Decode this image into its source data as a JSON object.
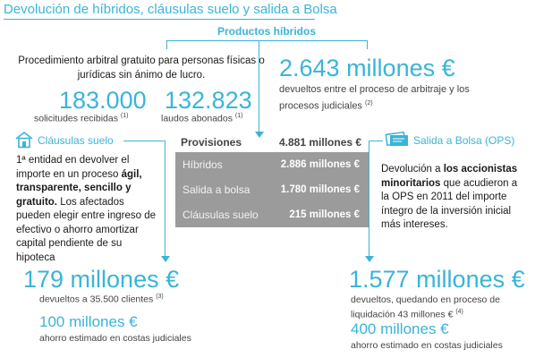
{
  "title": "Devolución de híbridos, cláusulas suelo y salida a Bolsa",
  "productos_hibridos": {
    "label": "Productos híbridos",
    "description": "Procedimiento arbitral gratuito para personas físicas o jurídicas sin ánimo de lucro.",
    "solicitudes_value": "183.000",
    "solicitudes_label": "solicitudes recibidas",
    "solicitudes_note": "(1)",
    "laudos_value": "132.823",
    "laudos_label": "laudos abonados",
    "laudos_note": "(1)",
    "devuelto_value": "2.643 millones €",
    "devuelto_text": "devueltos entre el proceso de arbitraje y los procesos judiciales",
    "devuelto_note": "(2)"
  },
  "provisiones": {
    "label": "Provisiones",
    "total": "4.881 millones €",
    "rows": [
      {
        "label": "Híbridos",
        "value": "2.886 millones €"
      },
      {
        "label": "Salida a bolsa",
        "value": "1.780 millones €"
      },
      {
        "label": "Cláusulas suelo",
        "value": "215 millones €"
      }
    ]
  },
  "clausulas_suelo": {
    "label": "Cláusulas suelo",
    "text_1": "1ª entidad en devolver el importe en un proceso ",
    "text_bold": "ágil, transparente, sencillo y gratuito.",
    "text_2": " Los afectados pueden elegir entre ingreso de efectivo o ahorro amortizar capital pendiente de su hipoteca",
    "devuelto_value": "179 millones €",
    "devuelto_text": "devueltos a 35.500 clientes",
    "devuelto_note": "(3)",
    "ahorro_value": "100 millones €",
    "ahorro_text": "ahorro estimado en costas judiciales"
  },
  "salida_bolsa": {
    "label": "Salida a Bolsa (OPS)",
    "text_1": "Devolución a ",
    "text_bold": "los accionistas minoritarios",
    "text_2": " que acudieron a la OPS en 2011 del importe íntegro de la inversión inicial más intereses.",
    "devuelto_value": "1.577 millones €",
    "devuelto_text": "devueltos, quedando en proceso de liquidación 43 millones €",
    "devuelto_note": "(4)",
    "ahorro_value": "400 millones €",
    "ahorro_text": "ahorro estimado en costas judiciales"
  },
  "colors": {
    "accent": "#3ab4d9",
    "box": "#9b9b9b"
  },
  "icons": {
    "clausulas": "house-icon",
    "bolsa": "ticket-icon"
  }
}
